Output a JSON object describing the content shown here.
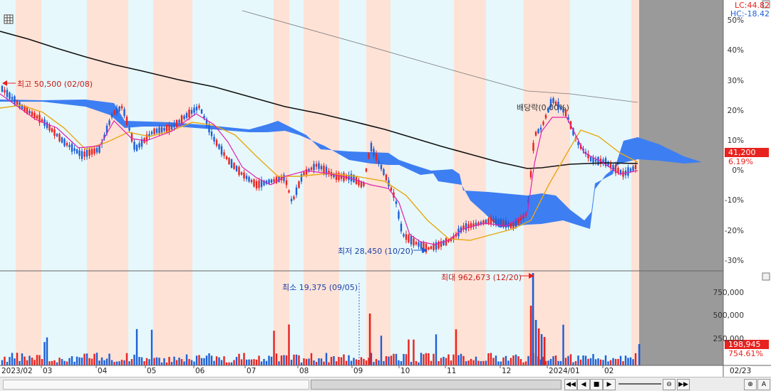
{
  "colors": {
    "pos_up": "#ffe2d6",
    "pos_down": "#e6f8fc",
    "cloud": "#3d7ef2",
    "candle_up": "#e8221e",
    "candle_down": "#1c5fd6",
    "ma_short": "#e020b0",
    "ma_mid": "#e8a812",
    "ma_long": "#111111",
    "future_zone": "#9a9a9a"
  },
  "toolbar": {
    "grid_icon": "grid-icon"
  },
  "header": {
    "lc_label": "LC:44.82",
    "hc_label": "HC:-18.42"
  },
  "price_axis": [
    "50%",
    "40%",
    "30%",
    "20%",
    "10%",
    "0%",
    "-10%",
    "-20%",
    "-30%"
  ],
  "volume_axis": [
    "750,000",
    "500,000",
    "250,000"
  ],
  "current_price": {
    "value": "41,200",
    "change": "6.19%"
  },
  "current_volume": {
    "value": "198,945",
    "change": "754.61%"
  },
  "annotations": {
    "high": "최고 50,500 (02/08)",
    "low": "최저 28,450 (10/20)",
    "dividend": "배당락(0.00%)",
    "vol_min": "최소 19,375 (09/05)",
    "vol_max": "최대 962,673 (12/20)"
  },
  "time_axis": [
    "2023/02",
    "03",
    "04",
    "05",
    "06",
    "07",
    "08",
    "09",
    "10",
    "11",
    "12",
    "2024/01",
    "02"
  ],
  "time_axis_right": "02/23",
  "scrollbar": {
    "buttons": [
      "◀◀",
      "◀",
      "■",
      "▶",
      "▶▶"
    ],
    "zoom_out": "⊖",
    "zoom_in": "⊕",
    "text_button": "A"
  }
}
